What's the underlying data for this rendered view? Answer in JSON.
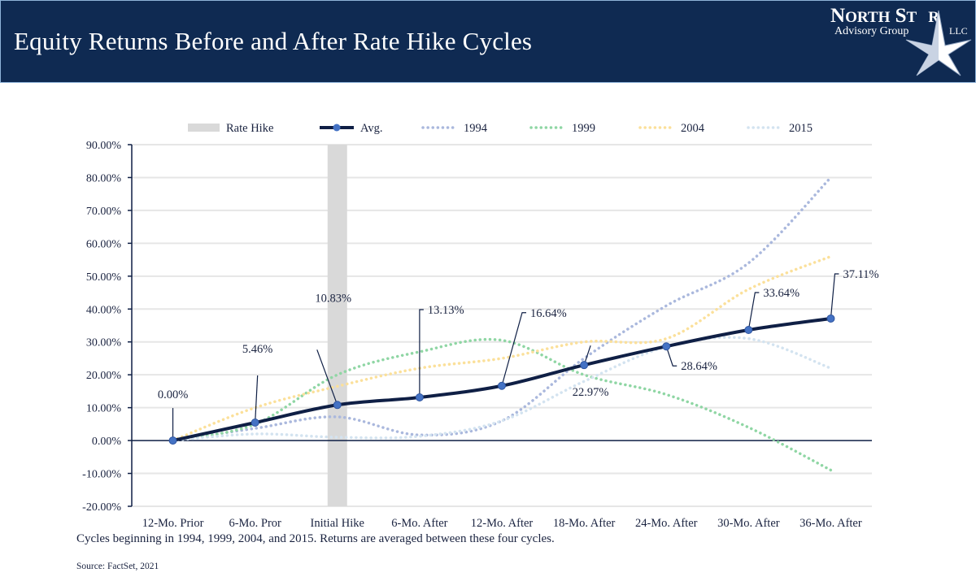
{
  "header": {
    "title": "Equity Returns Before and After Rate Hike Cycles",
    "background": "#0f2a52"
  },
  "logo": {
    "line1": "NORTH STAR",
    "line2": "Advisory Group",
    "line3": "LLC"
  },
  "footnote": "Cycles beginning in 1994, 1999, 2004, and 2015. Returns are averaged between these four cycles.",
  "source": "Source: FactSet, 2021",
  "chart_data": {
    "type": "line",
    "categories": [
      "12-Mo. Prior",
      "6-Mo. Pror",
      "Initial Hike",
      "6-Mo. After",
      "12-Mo. After",
      "18-Mo. After",
      "24-Mo. After",
      "30-Mo. After",
      "36-Mo. After"
    ],
    "ylim": [
      -20,
      90
    ],
    "yticks": [
      "-20.00%",
      "-10.00%",
      "0.00%",
      "10.00%",
      "20.00%",
      "30.00%",
      "40.00%",
      "50.00%",
      "60.00%",
      "70.00%",
      "80.00%",
      "90.00%"
    ],
    "grid": true,
    "legend_position": "top",
    "rate_hike": {
      "name": "Rate Hike",
      "category": "Initial Hike",
      "color": "#d9d9d9"
    },
    "series": [
      {
        "name": "Avg.",
        "color": "#0f1f45",
        "style": "solid-markers",
        "values": [
          0,
          5.46,
          10.83,
          13.13,
          16.64,
          22.97,
          28.64,
          33.64,
          37.11
        ],
        "labels": [
          "0.00%",
          "5.46%",
          "10.83%",
          "13.13%",
          "16.64%",
          "22.97%",
          "28.64%",
          "33.64%",
          "37.11%"
        ]
      },
      {
        "name": "1994",
        "color": "#aab8dd",
        "style": "dotted",
        "values": [
          0,
          3.7,
          7.2,
          1.7,
          6,
          25,
          41,
          54,
          80
        ]
      },
      {
        "name": "1999",
        "color": "#8fd6a4",
        "style": "dotted",
        "values": [
          0,
          5,
          20,
          27,
          30.5,
          20,
          14,
          4,
          -9
        ]
      },
      {
        "name": "2004",
        "color": "#fbe09a",
        "style": "dotted",
        "values": [
          0,
          10,
          16.5,
          22,
          25,
          30,
          31,
          46,
          56
        ]
      },
      {
        "name": "2015",
        "color": "#d3e3f0",
        "style": "dotted",
        "values": [
          0,
          2,
          1,
          1.3,
          6,
          18,
          28.5,
          31,
          22
        ]
      }
    ]
  }
}
